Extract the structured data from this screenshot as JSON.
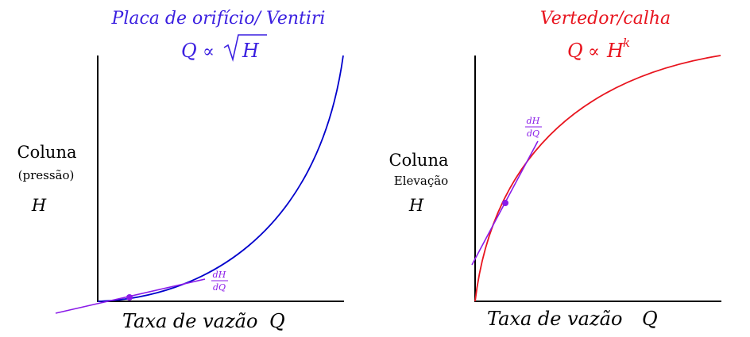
{
  "colors": {
    "left_curve": "#0000cc",
    "left_title": "#3a1fe0",
    "right_curve": "#e8141e",
    "tangent": "#8a1be8",
    "axes": "#000000"
  },
  "left": {
    "title": "Placa de orifício/ Ventiri",
    "formula_q": "Q",
    "formula_prop": "∝",
    "formula_h": "H",
    "ylabel_main": "Coluna",
    "ylabel_sub": "(pressão)",
    "ylabel_symbol": "H",
    "xlabel": "Taxa de vazão",
    "xlabel_symbol": "Q",
    "slope_num": "dH",
    "slope_den": "dQ"
  },
  "right": {
    "title": "Vertedor/calha",
    "formula_q": "Q",
    "formula_prop": "∝",
    "formula_h": "H",
    "formula_exp": "k",
    "ylabel_main": "Coluna",
    "ylabel_sub": "Elevação",
    "ylabel_symbol": "H",
    "xlabel": "Taxa de vazão",
    "xlabel_symbol": "Q",
    "slope_num": "dH",
    "slope_den": "dQ"
  }
}
